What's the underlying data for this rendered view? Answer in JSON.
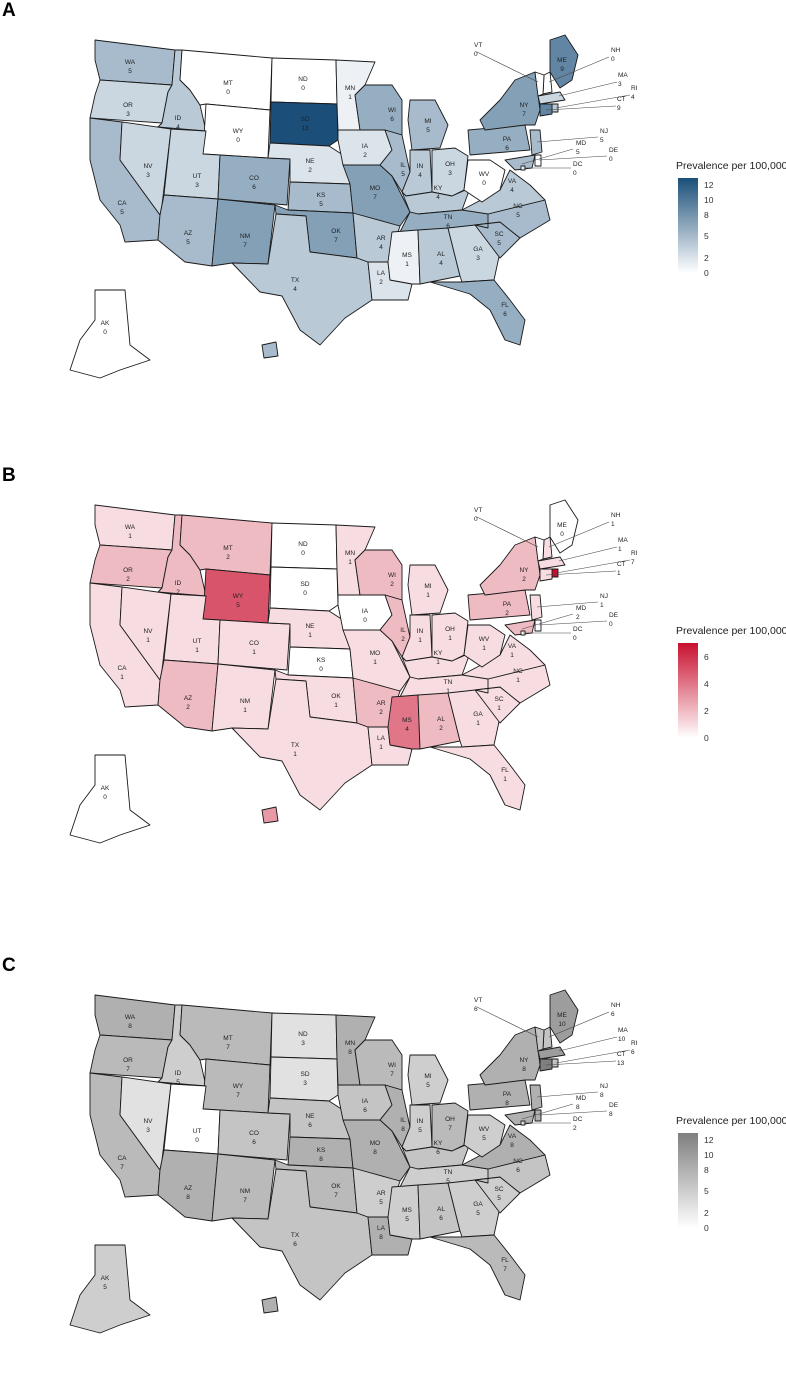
{
  "legend_title": "Prevalence per 100,000",
  "panels": [
    {
      "letter": "A",
      "scale": {
        "max": 13,
        "low": "#ffffff",
        "high": "#1b4f7a"
      },
      "ticks": [
        0,
        2,
        5,
        8,
        10,
        12
      ],
      "values": {
        "WA": 5,
        "OR": 3,
        "CA": 5,
        "ID": 4,
        "NV": 3,
        "MT": 0,
        "WY": 0,
        "UT": 3,
        "AZ": 5,
        "CO": 6,
        "NM": 7,
        "ND": 0,
        "SD": 13,
        "NE": 2,
        "KS": 5,
        "OK": 7,
        "TX": 4,
        "MN": 1,
        "IA": 2,
        "MO": 7,
        "AR": 4,
        "LA": 2,
        "WI": 6,
        "IL": 5,
        "MI": 5,
        "IN": 4,
        "OH": 3,
        "KY": 4,
        "TN": 6,
        "MS": 1,
        "AL": 4,
        "GA": 3,
        "FL": 6,
        "SC": 5,
        "NC": 5,
        "VA": 4,
        "WV": 0,
        "PA": 6,
        "NY": 7,
        "ME": 9,
        "NH": 0,
        "VT": 0,
        "MA": 3,
        "RI": 4,
        "CT": 9,
        "NJ": 5,
        "MD": 5,
        "DE": 0,
        "DC": 0,
        "AK": 0,
        "HI": 5
      }
    },
    {
      "letter": "B",
      "scale": {
        "max": 7,
        "low": "#ffffff",
        "high": "#c8102e"
      },
      "ticks": [
        0,
        2,
        4,
        6
      ],
      "values": {
        "WA": 1,
        "OR": 2,
        "CA": 1,
        "ID": 2,
        "NV": 1,
        "MT": 2,
        "WY": 5,
        "UT": 1,
        "AZ": 2,
        "CO": 1,
        "NM": 1,
        "ND": 0,
        "SD": 0,
        "NE": 1,
        "KS": 0,
        "OK": 1,
        "TX": 1,
        "MN": 1,
        "IA": 0,
        "MO": 1,
        "AR": 2,
        "LA": 1,
        "WI": 2,
        "IL": 2,
        "MI": 1,
        "IN": 1,
        "OH": 1,
        "KY": 1,
        "TN": 1,
        "MS": 4,
        "AL": 2,
        "GA": 1,
        "FL": 1,
        "SC": 1,
        "NC": 1,
        "VA": 1,
        "WV": 1,
        "PA": 2,
        "NY": 2,
        "ME": 0,
        "NH": 1,
        "VT": 0,
        "MA": 1,
        "RI": 7,
        "CT": 1,
        "NJ": 1,
        "MD": 2,
        "DE": 0,
        "DC": 0,
        "AK": 0,
        "HI": 3
      }
    },
    {
      "letter": "C",
      "scale": {
        "max": 13,
        "low": "#ffffff",
        "high": "#7f7f7f"
      },
      "ticks": [
        0,
        2,
        5,
        8,
        10,
        12
      ],
      "values": {
        "WA": 8,
        "OR": 7,
        "CA": 7,
        "ID": 5,
        "NV": 3,
        "MT": 7,
        "WY": 7,
        "UT": 0,
        "AZ": 8,
        "CO": 6,
        "NM": 7,
        "ND": 3,
        "SD": 3,
        "NE": 6,
        "KS": 8,
        "OK": 7,
        "TX": 6,
        "MN": 8,
        "IA": 6,
        "MO": 8,
        "AR": 5,
        "LA": 8,
        "WI": 7,
        "IL": 8,
        "MI": 5,
        "IN": 5,
        "OH": 7,
        "KY": 6,
        "TN": 5,
        "MS": 5,
        "AL": 6,
        "GA": 5,
        "FL": 7,
        "SC": 5,
        "NC": 6,
        "VA": 8,
        "WV": 5,
        "PA": 8,
        "NY": 8,
        "ME": 10,
        "NH": 6,
        "VT": 6,
        "MA": 10,
        "RI": 6,
        "CT": 13,
        "NJ": 8,
        "MD": 8,
        "DE": 8,
        "DC": 2,
        "AK": 5,
        "HI": 8
      }
    }
  ]
}
